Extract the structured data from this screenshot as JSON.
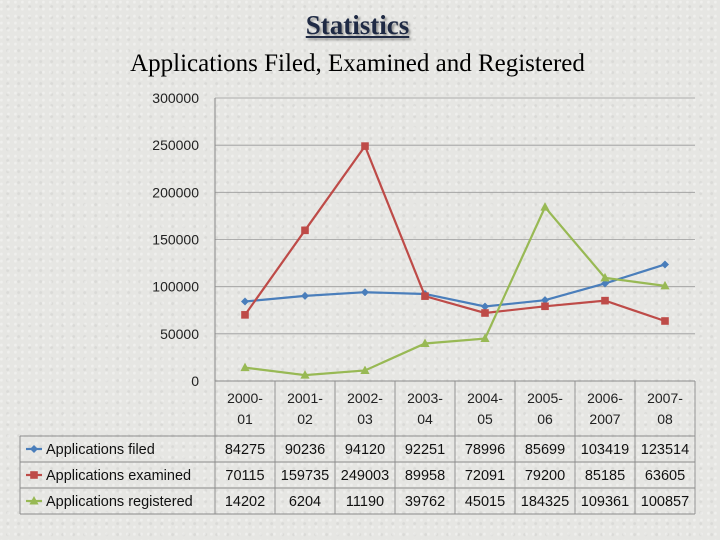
{
  "page": {
    "title": "Statistics",
    "subtitle": "Applications Filed, Examined and Registered"
  },
  "chart_data": {
    "type": "line",
    "title": "Applications Filed, Examined and Registered",
    "categories": [
      [
        "2000-",
        "01"
      ],
      [
        "2001-",
        "02"
      ],
      [
        "2002-",
        "03"
      ],
      [
        "2003-",
        "04"
      ],
      [
        "2004-",
        "05"
      ],
      [
        "2005-",
        "06"
      ],
      [
        "2006-",
        "2007"
      ],
      [
        "2007-",
        "08"
      ]
    ],
    "ylim": [
      0,
      300000
    ],
    "yticks": [
      "0",
      "50000",
      "100000",
      "150000",
      "200000",
      "250000",
      "300000"
    ],
    "grid": true,
    "legend": "data-table-left",
    "series": [
      {
        "name": "Applications filed",
        "color": "#4a7ebb",
        "marker": "diamond",
        "values": [
          84275,
          90236,
          94120,
          92251,
          78996,
          85699,
          103419,
          123514
        ]
      },
      {
        "name": "Applications examined",
        "color": "#be4b48",
        "marker": "square",
        "values": [
          70115,
          159735,
          249003,
          89958,
          72091,
          79200,
          85185,
          63605
        ]
      },
      {
        "name": "Applications registered",
        "color": "#98b954",
        "marker": "triangle",
        "values": [
          14202,
          6204,
          11190,
          39762,
          45015,
          184325,
          109361,
          100857
        ]
      }
    ]
  }
}
